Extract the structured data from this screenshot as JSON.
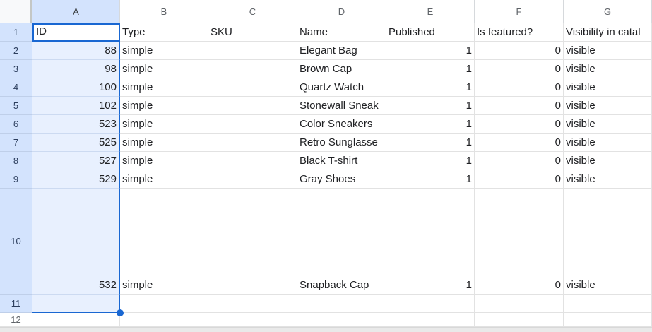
{
  "sheet": {
    "app": "spreadsheet-grid",
    "selection": {
      "range": "A1:A11",
      "active_cell": "A1",
      "accent_color": "#1967d2",
      "selected_cell_tint": "#e8f0fe",
      "selected_header_tint": "#d3e3fd"
    },
    "column_letters": [
      "A",
      "B",
      "C",
      "D",
      "E",
      "F",
      "G"
    ],
    "row_numbers": [
      "1",
      "2",
      "3",
      "4",
      "5",
      "6",
      "7",
      "8",
      "9",
      "10",
      "11",
      "12"
    ],
    "header_row": [
      "ID",
      "Type",
      "SKU",
      "Name",
      "Published",
      "Is featured?",
      "Visibility in catal"
    ],
    "data_rows": [
      {
        "row": "2",
        "cells": [
          "88",
          "simple",
          "",
          "Elegant Bag",
          "1",
          "0",
          "visible"
        ]
      },
      {
        "row": "3",
        "cells": [
          "98",
          "simple",
          "",
          "Brown Cap",
          "1",
          "0",
          "visible"
        ]
      },
      {
        "row": "4",
        "cells": [
          "100",
          "simple",
          "",
          "Quartz Watch",
          "1",
          "0",
          "visible"
        ]
      },
      {
        "row": "5",
        "cells": [
          "102",
          "simple",
          "",
          "Stonewall Sneak",
          "1",
          "0",
          "visible"
        ]
      },
      {
        "row": "6",
        "cells": [
          "523",
          "simple",
          "",
          "Color Sneakers",
          "1",
          "0",
          "visible"
        ]
      },
      {
        "row": "7",
        "cells": [
          "525",
          "simple",
          "",
          "Retro Sunglasse",
          "1",
          "0",
          "visible"
        ]
      },
      {
        "row": "8",
        "cells": [
          "527",
          "simple",
          "",
          "Black T-shirt",
          "1",
          "0",
          "visible"
        ]
      },
      {
        "row": "9",
        "cells": [
          "529",
          "simple",
          "",
          "Gray Shoes",
          "1",
          "0",
          "visible"
        ]
      },
      {
        "row": "10",
        "cells": [
          "532",
          "simple",
          "",
          "Snapback Cap",
          "1",
          "0",
          "visible"
        ]
      },
      {
        "row": "11",
        "cells": [
          "",
          "",
          "",
          "",
          "",
          "",
          ""
        ]
      },
      {
        "row": "12",
        "cells": [
          "",
          "",
          "",
          "",
          "",
          "",
          ""
        ]
      }
    ]
  }
}
